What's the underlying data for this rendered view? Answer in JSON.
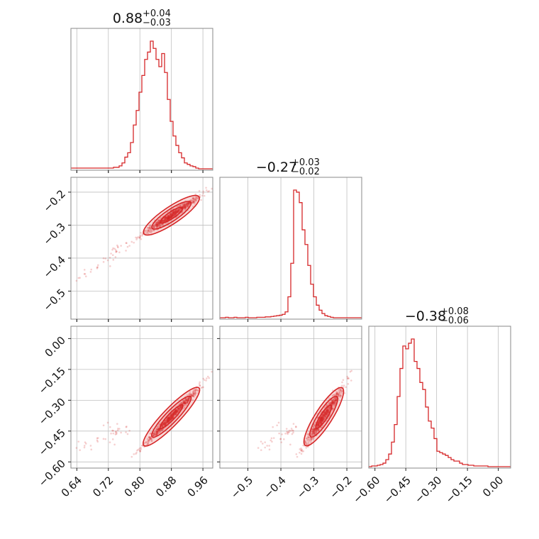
{
  "colors": {
    "series": "#d62728",
    "frame": "#888888",
    "grid": "#bfbfbf"
  },
  "chart_data": {
    "type": "corner",
    "parameters": [
      {
        "median": 0.88,
        "plus": 0.04,
        "minus": 0.03,
        "title": {
          "main": "0.88",
          "sup": "+0.04",
          "sub": "−0.03"
        },
        "range": [
          0.625,
          0.985
        ],
        "ticks": [
          0.64,
          0.72,
          0.8,
          0.88,
          0.96
        ],
        "tick_labels": [
          "0.64",
          "0.72",
          "0.80",
          "0.88",
          "0.96"
        ]
      },
      {
        "median": -0.27,
        "plus": 0.03,
        "minus": 0.02,
        "title": {
          "main": "−0.27",
          "sup": "+0.03",
          "sub": "−0.02"
        },
        "range": [
          -0.585,
          -0.155
        ],
        "ticks": [
          -0.5,
          -0.4,
          -0.3,
          -0.2
        ],
        "tick_labels": [
          "−0.5",
          "−0.4",
          "−0.3",
          "−0.2"
        ]
      },
      {
        "median": -0.38,
        "plus": 0.08,
        "minus": 0.06,
        "title": {
          "main": "−0.38",
          "sup": "+0.08",
          "sub": "−0.06"
        },
        "range": [
          -0.63,
          0.06
        ],
        "ticks": [
          -0.6,
          -0.45,
          -0.3,
          -0.15,
          0.0
        ],
        "tick_labels": [
          "−0.60",
          "−0.45",
          "−0.30",
          "−0.15",
          "0.00"
        ]
      }
    ],
    "histograms": [
      {
        "param": 0,
        "bin_start": 0.625,
        "bin_width": 0.0072,
        "counts": [
          1,
          1,
          1,
          1,
          1,
          1,
          1,
          1,
          1,
          1,
          1,
          1,
          1,
          1,
          1,
          2,
          2,
          4,
          8,
          16,
          22,
          36,
          60,
          80,
          105,
          128,
          150,
          160,
          175,
          165,
          150,
          140,
          158,
          132,
          95,
          65,
          45,
          32,
          22,
          15,
          8,
          6,
          4,
          3,
          1,
          0,
          0,
          0,
          0,
          0
        ]
      },
      {
        "param": 1,
        "bin_start": -0.585,
        "bin_width": 0.0086,
        "counts": [
          0,
          0,
          1,
          0,
          0,
          1,
          0,
          0,
          0,
          1,
          0,
          0,
          0,
          1,
          1,
          1,
          2,
          2,
          3,
          4,
          5,
          6,
          8,
          14,
          50,
          130,
          305,
          300,
          275,
          210,
          175,
          125,
          80,
          50,
          30,
          18,
          10,
          5,
          3,
          1,
          0,
          0,
          0,
          0,
          0,
          0,
          0,
          0,
          0,
          0
        ]
      },
      {
        "param": 2,
        "bin_start": -0.63,
        "bin_width": 0.0138,
        "counts": [
          0,
          1,
          1,
          2,
          3,
          5,
          10,
          18,
          35,
          60,
          100,
          140,
          172,
          168,
          176,
          182,
          150,
          140,
          120,
          110,
          85,
          65,
          55,
          40,
          22,
          20,
          18,
          16,
          13,
          10,
          8,
          8,
          5,
          3,
          3,
          2,
          2,
          1,
          1,
          1,
          1,
          1,
          0,
          0,
          0,
          0,
          0,
          0,
          0,
          0
        ]
      }
    ],
    "scatter_panels": [
      {
        "x_param": 0,
        "y_param": 1
      },
      {
        "x_param": 0,
        "y_param": 2
      },
      {
        "x_param": 1,
        "y_param": 2
      }
    ],
    "grid": true
  }
}
